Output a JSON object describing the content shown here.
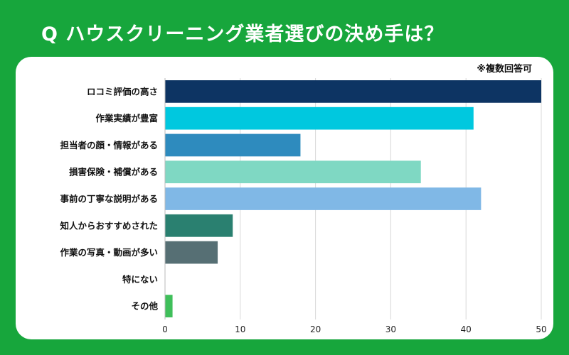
{
  "title": "Q ハウスクリーニング業者選びの決め手は？",
  "note": "※複数回答可",
  "chart_data": {
    "type": "bar",
    "orientation": "horizontal",
    "title": "Q ハウスクリーニング業者選びの決め手は？",
    "categories": [
      "ロコミ評価の高さ",
      "作業実績が豊富",
      "担当者の顔・情報がある",
      "損害保険・補償がある",
      "事前の丁寧な説明がある",
      "知人からおすすめされた",
      "作業の写真・動画が多い",
      "特にない",
      "その他"
    ],
    "values": [
      50,
      41,
      18,
      34,
      42,
      9,
      7,
      0,
      1
    ],
    "colors": [
      "#0d3463",
      "#00c8df",
      "#2e8bbe",
      "#7fd8c3",
      "#80b8e6",
      "#2a8070",
      "#566f74",
      "#cccccc",
      "#3fbf5a"
    ],
    "xlim": [
      0,
      50
    ],
    "xticks": [
      0,
      10,
      20,
      30,
      40,
      50
    ],
    "grid": true,
    "legend": "none"
  }
}
